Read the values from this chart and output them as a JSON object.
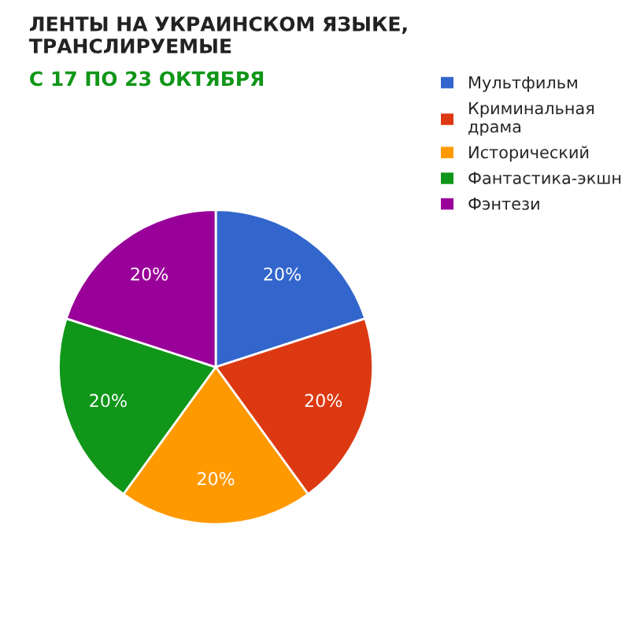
{
  "chart_data": {
    "type": "pie",
    "title": "ЛЕНТЫ НА УКРАИНСКОМ ЯЗЫКЕ,\nТРАНСЛИРУЕМЫЕ",
    "subtitle": "С 17 ПО 23 ОКТЯБРЯ",
    "categories": [
      "Мультфильм",
      "Криминальная\nдрама",
      "Исторический",
      "Фантастика-экшн",
      "Фэнтези"
    ],
    "values": [
      20,
      20,
      20,
      20,
      20
    ],
    "colors": [
      "#3366cc",
      "#dc3912",
      "#ff9900",
      "#109618",
      "#990099"
    ],
    "value_labels": [
      "20%",
      "20%",
      "20%",
      "20%",
      "20%"
    ],
    "legend": "right"
  }
}
